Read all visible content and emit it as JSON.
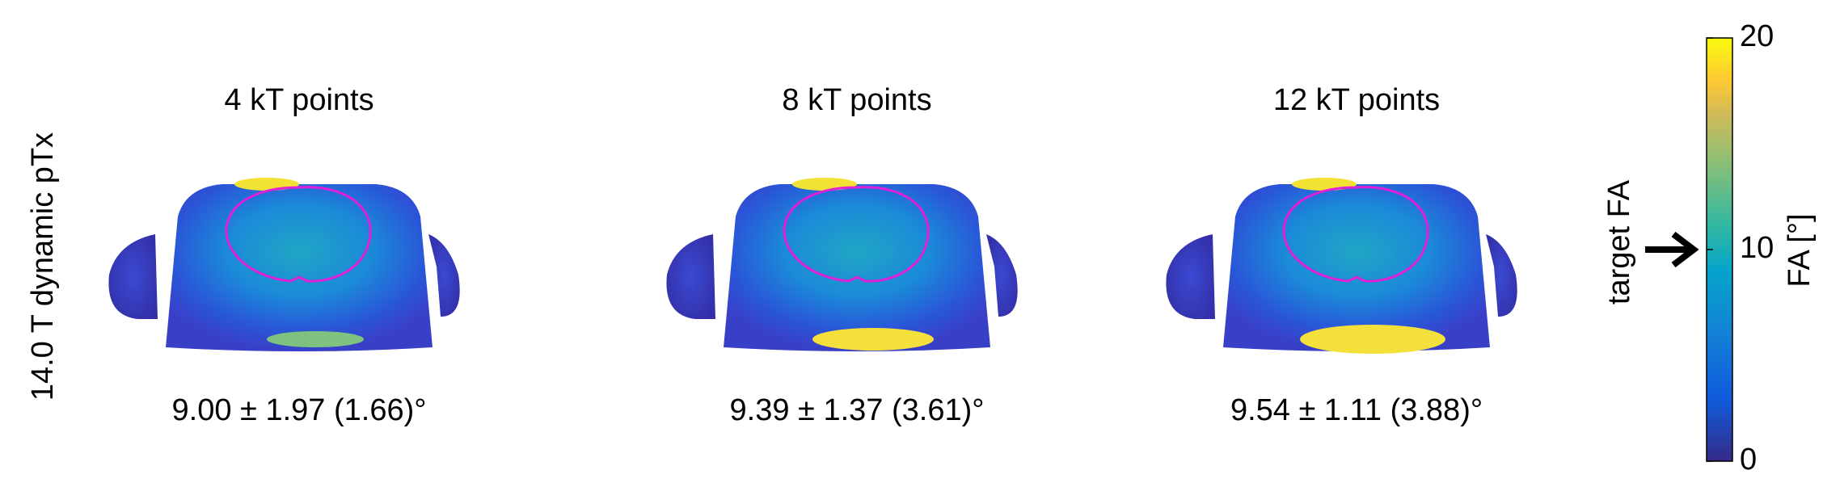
{
  "row_label": "14.0 T dynamic pTx",
  "panels": [
    {
      "title": "4 kT points",
      "stats": "9.00 ± 1.97 (1.66)°"
    },
    {
      "title": "8 kT points",
      "stats": "9.39 ± 1.37 (3.61)°"
    },
    {
      "title": "12 kT points",
      "stats": "9.54 ± 1.11 (3.88)°"
    }
  ],
  "colorbar": {
    "label": "FA [°]",
    "lim": [
      0,
      20
    ],
    "ticks": [
      0,
      10,
      20
    ]
  },
  "target_label": "target FA"
}
